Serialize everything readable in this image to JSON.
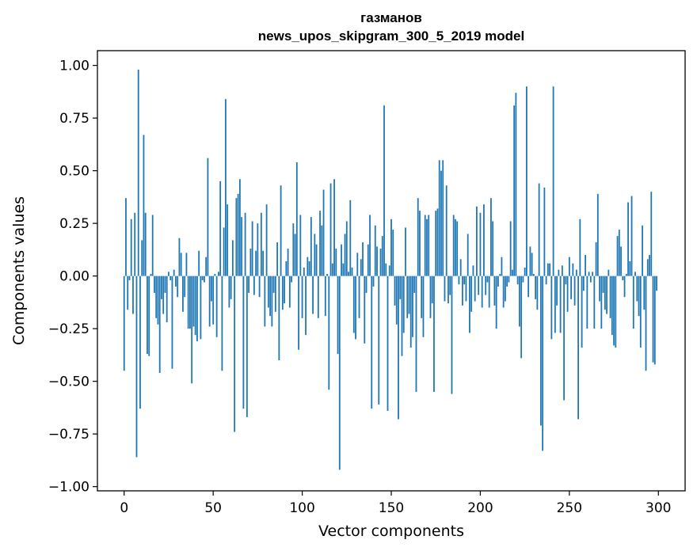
{
  "chart_data": {
    "type": "bar",
    "title_line1": "газманов",
    "title_line2": "news_upos_skipgram_300_5_2019 model",
    "xlabel": "Vector components",
    "ylabel": "Components values",
    "xlim": [
      -15,
      315
    ],
    "ylim": [
      -1.02,
      1.07
    ],
    "xticks": [
      0,
      50,
      100,
      150,
      200,
      250,
      300
    ],
    "yticks": [
      -1.0,
      -0.75,
      -0.5,
      -0.25,
      0.0,
      0.25,
      0.5,
      0.75,
      1.0
    ],
    "ytick_labels": [
      "−1.00",
      "−0.75",
      "−0.50",
      "−0.25",
      "0.00",
      "0.25",
      "0.50",
      "0.75",
      "1.00"
    ],
    "grid": false,
    "bar_color": "#1f77b4",
    "values": [
      -0.45,
      0.37,
      -0.16,
      -0.02,
      0.27,
      -0.18,
      0.3,
      -0.86,
      0.98,
      -0.63,
      0.17,
      0.67,
      0.3,
      -0.37,
      -0.38,
      0.01,
      0.29,
      -0.08,
      -0.2,
      -0.23,
      -0.46,
      -0.11,
      -0.18,
      -0.08,
      -0.22,
      0.02,
      -0.02,
      -0.44,
      0.03,
      -0.05,
      -0.1,
      0.18,
      0.11,
      -0.17,
      -0.1,
      0.11,
      -0.25,
      -0.25,
      -0.51,
      -0.24,
      -0.28,
      -0.31,
      0.12,
      -0.3,
      -0.02,
      -0.03,
      0.09,
      0.56,
      -0.24,
      -0.12,
      -0.23,
      0.01,
      -0.29,
      0.02,
      0.45,
      -0.45,
      0.23,
      0.84,
      0.34,
      -0.15,
      -0.11,
      0.17,
      -0.74,
      0.37,
      0.39,
      0.46,
      0.28,
      -0.63,
      0.3,
      -0.67,
      -0.08,
      0.13,
      0.26,
      -0.09,
      0.12,
      0.25,
      -0.1,
      0.3,
      0.12,
      -0.24,
      0.34,
      -0.15,
      -0.19,
      -0.24,
      -0.08,
      -0.17,
      0.16,
      -0.4,
      0.43,
      -0.16,
      -0.13,
      0.07,
      0.13,
      -0.15,
      -0.03,
      0.25,
      0.2,
      0.54,
      -0.35,
      0.29,
      -0.2,
      0.04,
      -0.28,
      0.09,
      0.07,
      0.28,
      -0.18,
      0.2,
      0.15,
      -0.2,
      0.31,
      0.24,
      0.41,
      -0.19,
      0.01,
      -0.54,
      0.44,
      0.06,
      0.46,
      0.13,
      -0.37,
      -0.92,
      0.15,
      0.06,
      0.2,
      0.26,
      0.02,
      0.36,
      0.04,
      -0.27,
      -0.3,
      0.11,
      -0.2,
      0.08,
      0.16,
      -0.32,
      -0.08,
      0.15,
      0.29,
      -0.63,
      -0.05,
      0.24,
      0.14,
      -0.61,
      0.13,
      0.19,
      0.81,
      0.06,
      -0.64,
      0.05,
      0.27,
      0.22,
      -0.14,
      -0.23,
      -0.68,
      -0.11,
      -0.38,
      -0.27,
      0.23,
      -0.2,
      -0.18,
      -0.34,
      -0.29,
      -0.08,
      -0.55,
      0.37,
      0.31,
      -0.2,
      -0.29,
      0.29,
      0.27,
      0.29,
      -0.2,
      -0.13,
      -0.55,
      0.31,
      0.32,
      0.55,
      0.5,
      0.55,
      -0.12,
      0.43,
      -0.13,
      -0.09,
      -0.56,
      0.29,
      0.27,
      0.26,
      -0.04,
      0.08,
      -0.14,
      -0.04,
      -0.12,
      0.2,
      -0.27,
      -0.17,
      0.05,
      -0.12,
      0.33,
      -0.09,
      0.3,
      -0.15,
      0.34,
      -0.09,
      -0.03,
      -0.15,
      0.37,
      0.26,
      -0.14,
      -0.25,
      -0.05,
      0.01,
      0.09,
      -0.15,
      -0.12,
      -0.05,
      -0.03,
      0.26,
      0.03,
      0.81,
      0.87,
      -0.04,
      -0.24,
      -0.39,
      -0.03,
      0.04,
      0.9,
      -0.1,
      0.14,
      0.11,
      0.01,
      -0.11,
      -0.16,
      0.44,
      -0.71,
      -0.83,
      0.42,
      -0.04,
      0.06,
      0.06,
      -0.3,
      0.9,
      -0.27,
      -0.14,
      0.03,
      -0.27,
      0.05,
      -0.59,
      -0.04,
      -0.17,
      0.09,
      -0.11,
      0.06,
      -0.14,
      0.03,
      -0.68,
      0.27,
      -0.34,
      -0.07,
      0.1,
      -0.25,
      0.02,
      -0.03,
      0.02,
      -0.25,
      0.16,
      0.39,
      -0.12,
      -0.25,
      -0.08,
      -0.16,
      -0.18,
      0.03,
      -0.2,
      -0.28,
      -0.33,
      -0.34,
      0.19,
      0.22,
      0.14,
      -0.02,
      -0.1,
      0.01,
      0.35,
      0.07,
      0.38,
      -0.25,
      0.02,
      -0.12,
      -0.19,
      -0.34,
      0.24,
      -0.16,
      -0.45,
      0.08,
      0.1,
      0.4,
      -0.41,
      -0.42,
      -0.07
    ]
  }
}
